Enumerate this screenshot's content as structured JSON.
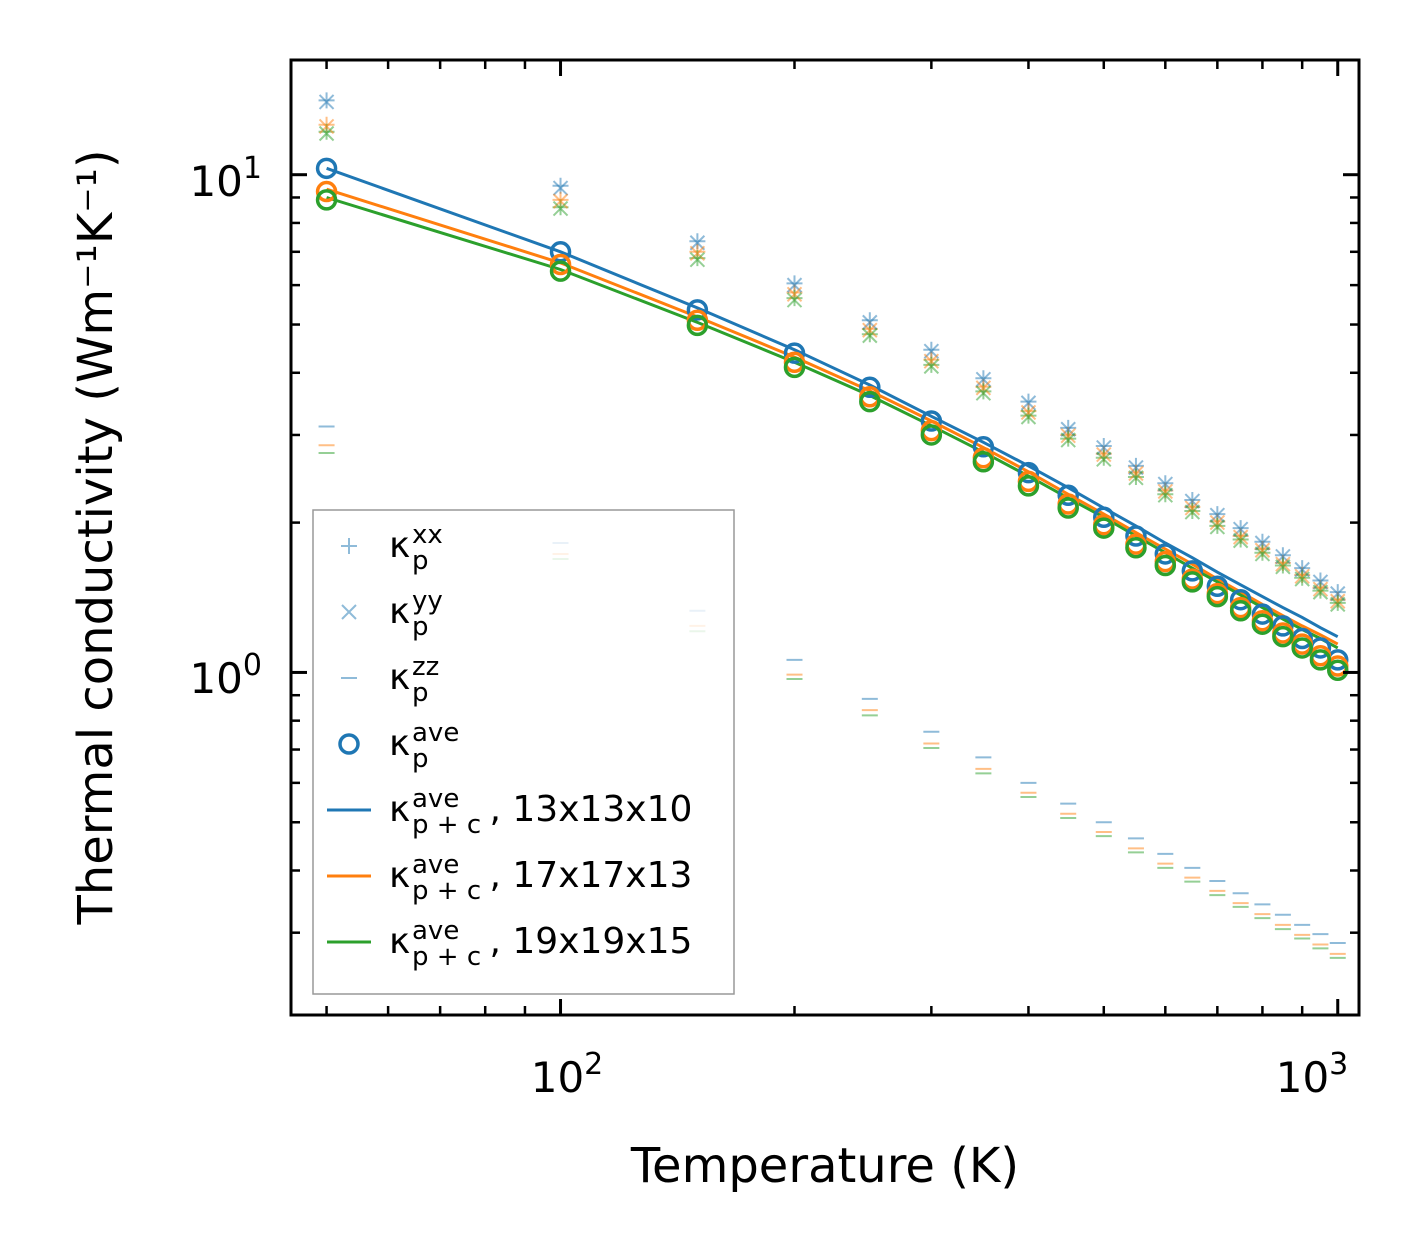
{
  "chart_data": {
    "type": "scatter",
    "xscale": "log",
    "yscale": "log",
    "xlim": [
      45,
      1065
    ],
    "ylim": [
      0.205,
      17
    ],
    "xlabel": "Temperature (K)",
    "ylabel": "Thermal conductivity (Wm⁻¹K⁻¹)",
    "xticks": [
      {
        "base": "10",
        "exp": "2",
        "value": 100
      },
      {
        "base": "10",
        "exp": "3",
        "value": 1000
      }
    ],
    "yticks": [
      {
        "base": "10",
        "exp": "0",
        "value": 1
      },
      {
        "base": "10",
        "exp": "1",
        "value": 10
      }
    ],
    "x": [
      50,
      100,
      150,
      200,
      250,
      300,
      350,
      400,
      450,
      500,
      550,
      600,
      650,
      700,
      750,
      800,
      850,
      900,
      950,
      1000
    ],
    "colors": {
      "grid_1": "#1f77b4",
      "grid_2": "#ff7f0e",
      "grid_3": "#2ca02c"
    },
    "series": [
      {
        "name": "kxx 13x13x10",
        "marker": "plus",
        "color": "#1f77b4",
        "values": [
          14.1,
          9.5,
          7.35,
          6.05,
          5.1,
          4.45,
          3.9,
          3.5,
          3.1,
          2.85,
          2.6,
          2.4,
          2.22,
          2.08,
          1.95,
          1.83,
          1.72,
          1.62,
          1.53,
          1.45
        ]
      },
      {
        "name": "kxx 17x17x13",
        "marker": "plus",
        "color": "#ff7f0e",
        "values": [
          12.6,
          8.9,
          7.0,
          5.8,
          4.9,
          4.25,
          3.75,
          3.35,
          3.0,
          2.75,
          2.52,
          2.32,
          2.15,
          2.01,
          1.88,
          1.77,
          1.66,
          1.57,
          1.48,
          1.4
        ]
      },
      {
        "name": "kxx 19x19x15",
        "marker": "plus",
        "color": "#2ca02c",
        "values": [
          12.2,
          8.6,
          6.8,
          5.65,
          4.78,
          4.15,
          3.67,
          3.28,
          2.95,
          2.7,
          2.47,
          2.28,
          2.11,
          1.97,
          1.85,
          1.74,
          1.64,
          1.55,
          1.46,
          1.38
        ]
      },
      {
        "name": "kyy 13x13x10",
        "marker": "cross",
        "color": "#1f77b4",
        "values": [
          14.0,
          9.4,
          7.3,
          6.0,
          5.05,
          4.42,
          3.88,
          3.48,
          3.08,
          2.83,
          2.58,
          2.39,
          2.21,
          2.07,
          1.94,
          1.82,
          1.71,
          1.61,
          1.52,
          1.44
        ]
      },
      {
        "name": "kyy 17x17x13",
        "marker": "cross",
        "color": "#ff7f0e",
        "values": [
          12.5,
          8.85,
          6.95,
          5.75,
          4.87,
          4.22,
          3.73,
          3.33,
          2.99,
          2.74,
          2.51,
          2.31,
          2.14,
          2.0,
          1.87,
          1.76,
          1.65,
          1.56,
          1.47,
          1.39
        ]
      },
      {
        "name": "kyy 19x19x15",
        "marker": "cross",
        "color": "#2ca02c",
        "values": [
          12.1,
          8.55,
          6.75,
          5.6,
          4.75,
          4.12,
          3.64,
          3.26,
          2.93,
          2.68,
          2.46,
          2.27,
          2.1,
          1.96,
          1.84,
          1.73,
          1.63,
          1.54,
          1.45,
          1.37
        ]
      },
      {
        "name": "kzz 13x13x10",
        "marker": "hline",
        "color": "#1f77b4",
        "values": [
          3.12,
          1.82,
          1.33,
          1.06,
          0.885,
          0.76,
          0.675,
          0.6,
          0.545,
          0.5,
          0.464,
          0.432,
          0.405,
          0.381,
          0.36,
          0.342,
          0.326,
          0.311,
          0.298,
          0.286
        ]
      },
      {
        "name": "kzz 17x17x13",
        "marker": "hline",
        "color": "#ff7f0e",
        "values": [
          2.86,
          1.73,
          1.24,
          0.99,
          0.84,
          0.72,
          0.64,
          0.573,
          0.52,
          0.478,
          0.443,
          0.413,
          0.387,
          0.364,
          0.344,
          0.327,
          0.311,
          0.297,
          0.284,
          0.272
        ]
      },
      {
        "name": "kzz 19x19x15",
        "marker": "hline",
        "color": "#2ca02c",
        "values": [
          2.76,
          1.69,
          1.21,
          0.97,
          0.82,
          0.705,
          0.627,
          0.562,
          0.51,
          0.469,
          0.435,
          0.405,
          0.38,
          0.357,
          0.338,
          0.321,
          0.305,
          0.292,
          0.279,
          0.267
        ]
      },
      {
        "name": "kave 13x13x10",
        "marker": "circle",
        "color": "#1f77b4",
        "values": [
          10.3,
          7.0,
          5.35,
          4.38,
          3.74,
          3.2,
          2.84,
          2.52,
          2.27,
          2.05,
          1.88,
          1.73,
          1.6,
          1.49,
          1.4,
          1.31,
          1.24,
          1.17,
          1.12,
          1.06
        ]
      },
      {
        "name": "kave 17x17x13",
        "marker": "circle",
        "color": "#ff7f0e",
        "values": [
          9.25,
          6.6,
          5.1,
          4.2,
          3.58,
          3.06,
          2.7,
          2.42,
          2.18,
          1.98,
          1.81,
          1.67,
          1.54,
          1.44,
          1.35,
          1.27,
          1.2,
          1.14,
          1.08,
          1.03
        ]
      },
      {
        "name": "kave 19x19x15",
        "marker": "circle",
        "color": "#2ca02c",
        "values": [
          8.9,
          6.4,
          4.98,
          4.1,
          3.5,
          3.0,
          2.65,
          2.37,
          2.14,
          1.95,
          1.78,
          1.64,
          1.52,
          1.42,
          1.33,
          1.25,
          1.18,
          1.12,
          1.06,
          1.01
        ]
      },
      {
        "name": "kp+c 13x13x10",
        "marker": "line",
        "color": "#1f77b4",
        "values": [
          10.3,
          7.0,
          5.4,
          4.45,
          3.78,
          3.27,
          2.9,
          2.6,
          2.35,
          2.14,
          1.97,
          1.82,
          1.7,
          1.59,
          1.5,
          1.42,
          1.35,
          1.29,
          1.23,
          1.18
        ]
      },
      {
        "name": "kp+c 17x17x13",
        "marker": "line",
        "color": "#ff7f0e",
        "values": [
          9.35,
          6.65,
          5.18,
          4.3,
          3.68,
          3.2,
          2.83,
          2.53,
          2.28,
          2.08,
          1.91,
          1.77,
          1.65,
          1.54,
          1.45,
          1.37,
          1.3,
          1.24,
          1.19,
          1.14
        ]
      },
      {
        "name": "kp+c 19x19x15",
        "marker": "line",
        "color": "#2ca02c",
        "values": [
          9.0,
          6.45,
          5.05,
          4.2,
          3.6,
          3.13,
          2.77,
          2.48,
          2.24,
          2.05,
          1.88,
          1.74,
          1.62,
          1.52,
          1.43,
          1.35,
          1.28,
          1.22,
          1.17,
          1.12
        ]
      }
    ],
    "legend": {
      "position": "lower-left",
      "entries": [
        {
          "marker": "plus",
          "symbol": "κ",
          "sub": "p",
          "sup": "xx",
          "suffix": ""
        },
        {
          "marker": "cross",
          "symbol": "κ",
          "sub": "p",
          "sup": "yy",
          "suffix": ""
        },
        {
          "marker": "hline",
          "symbol": "κ",
          "sub": "p",
          "sup": "zz",
          "suffix": ""
        },
        {
          "marker": "circle",
          "symbol": "κ",
          "sub": "p",
          "sup": "ave",
          "suffix": ""
        },
        {
          "marker": "line",
          "color": "#1f77b4",
          "symbol": "κ",
          "sub": "p + c",
          "sup": "ave",
          "suffix": ", 13x13x10"
        },
        {
          "marker": "line",
          "color": "#ff7f0e",
          "symbol": "κ",
          "sub": "p + c",
          "sup": "ave",
          "suffix": ", 17x17x13"
        },
        {
          "marker": "line",
          "color": "#2ca02c",
          "symbol": "κ",
          "sub": "p + c",
          "sup": "ave",
          "suffix": ", 19x19x15"
        }
      ]
    }
  }
}
